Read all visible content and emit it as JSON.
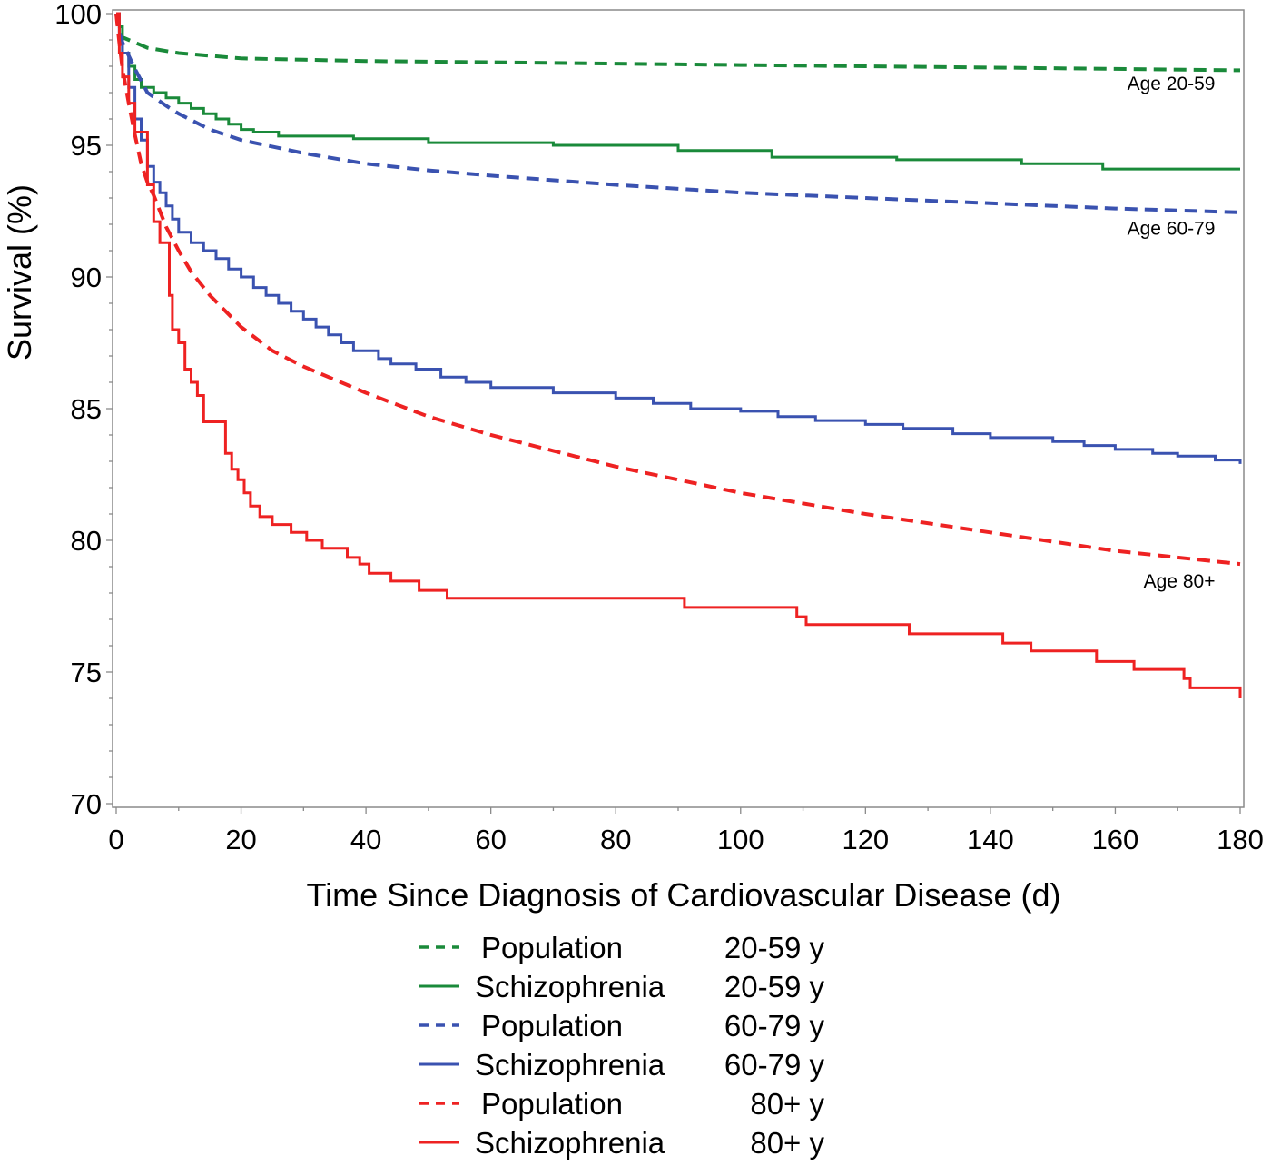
{
  "chart_data": {
    "type": "line",
    "title": "",
    "xlabel": "Time Since Diagnosis of Cardiovascular Disease (d)",
    "ylabel": "Survival (%)",
    "xlim": [
      0,
      180
    ],
    "ylim": [
      70,
      100
    ],
    "xticks": [
      0,
      20,
      40,
      60,
      80,
      100,
      120,
      140,
      160,
      180
    ],
    "xtick_labels": [
      "0",
      "20",
      "40",
      "60",
      "80",
      "100",
      "120",
      "140",
      "160",
      "180"
    ],
    "yticks": [
      70,
      75,
      80,
      85,
      90,
      95,
      100
    ],
    "ytick_labels": [
      "70",
      "75",
      "80",
      "85",
      "90",
      "95",
      "100"
    ],
    "y_minor_tick_step": 1,
    "x_minor_tick_step": 10,
    "grid": false,
    "legend_position": "bottom",
    "annotations": [
      {
        "text": "Age 20-59",
        "x": 176,
        "y": 97.1
      },
      {
        "text": "Age 60-79",
        "x": 176,
        "y": 91.6
      },
      {
        "text": "Age 80+",
        "x": 176,
        "y": 78.2
      }
    ],
    "series": [
      {
        "name": "Population 20-59 y",
        "group": "Population",
        "age": "20-59 y",
        "color": "#1a8a3a",
        "style": "dashed",
        "step": false,
        "x": [
          0,
          0.5,
          1,
          3,
          5,
          10,
          15,
          20,
          30,
          40,
          60,
          80,
          100,
          120,
          140,
          160,
          180
        ],
        "y": [
          100,
          99.5,
          99.1,
          98.9,
          98.7,
          98.5,
          98.4,
          98.3,
          98.25,
          98.2,
          98.15,
          98.1,
          98.05,
          98.0,
          97.95,
          97.9,
          97.85
        ]
      },
      {
        "name": "Schizophrenia 20-59 y",
        "group": "Schizophrenia",
        "age": "20-59 y",
        "color": "#1a8a3a",
        "style": "solid",
        "step": true,
        "x": [
          0,
          0.5,
          1,
          2,
          3,
          4,
          6,
          8,
          10,
          12,
          14,
          16,
          18,
          20,
          22,
          26,
          38,
          50,
          70,
          90,
          105,
          125,
          145,
          158,
          180
        ],
        "y": [
          100,
          99.5,
          98.5,
          98.0,
          97.5,
          97.2,
          97.0,
          96.8,
          96.6,
          96.4,
          96.2,
          96.0,
          95.8,
          95.6,
          95.5,
          95.35,
          95.25,
          95.1,
          95.0,
          94.8,
          94.55,
          94.45,
          94.3,
          94.1,
          94.1
        ]
      },
      {
        "name": "Population 60-79 y",
        "group": "Population",
        "age": "60-79 y",
        "color": "#3a52b0",
        "style": "dashed",
        "step": false,
        "x": [
          0,
          0.5,
          1,
          2,
          3,
          5,
          8,
          10,
          15,
          20,
          30,
          40,
          50,
          60,
          80,
          100,
          120,
          140,
          160,
          180
        ],
        "y": [
          100,
          99.3,
          98.9,
          98.4,
          97.9,
          97.0,
          96.5,
          96.2,
          95.6,
          95.2,
          94.7,
          94.3,
          94.05,
          93.85,
          93.5,
          93.2,
          93.0,
          92.8,
          92.6,
          92.45
        ]
      },
      {
        "name": "Schizophrenia 60-79 y",
        "group": "Schizophrenia",
        "age": "60-79 y",
        "color": "#3a52b0",
        "style": "solid",
        "step": true,
        "x": [
          0,
          0.5,
          1,
          2,
          3,
          4,
          5,
          6,
          7,
          8,
          9,
          10,
          12,
          14,
          16,
          18,
          20,
          22,
          24,
          26,
          28,
          30,
          32,
          34,
          36,
          38,
          42,
          44,
          48,
          52,
          56,
          60,
          70,
          80,
          86,
          92,
          100,
          106,
          112,
          120,
          126,
          134,
          140,
          150,
          155,
          160,
          166,
          170,
          176,
          180
        ],
        "y": [
          100,
          99.0,
          98.5,
          97.2,
          96.0,
          95.2,
          94.2,
          93.6,
          93.2,
          92.7,
          92.2,
          91.7,
          91.3,
          91.0,
          90.7,
          90.3,
          90.0,
          89.6,
          89.3,
          89.0,
          88.7,
          88.4,
          88.1,
          87.8,
          87.5,
          87.2,
          86.9,
          86.7,
          86.5,
          86.2,
          86.0,
          85.8,
          85.6,
          85.4,
          85.2,
          85.0,
          84.9,
          84.7,
          84.55,
          84.4,
          84.25,
          84.05,
          83.9,
          83.75,
          83.6,
          83.45,
          83.3,
          83.2,
          83.05,
          82.9
        ]
      },
      {
        "name": "Population 80+ y",
        "group": "Population",
        "age": "80+ y",
        "color": "#ee2222",
        "style": "dashed",
        "step": false,
        "x": [
          0,
          0.5,
          1,
          2,
          3,
          4,
          5,
          6,
          8,
          10,
          12,
          15,
          20,
          25,
          30,
          40,
          50,
          60,
          70,
          80,
          90,
          100,
          120,
          140,
          160,
          180
        ],
        "y": [
          100,
          98.9,
          97.9,
          96.6,
          95.4,
          94.3,
          93.6,
          93.1,
          91.9,
          91.0,
          90.2,
          89.3,
          88.1,
          87.2,
          86.6,
          85.6,
          84.7,
          84.0,
          83.4,
          82.8,
          82.3,
          81.8,
          81.0,
          80.3,
          79.6,
          79.1
        ]
      },
      {
        "name": "Schizophrenia 80+ y",
        "group": "Schizophrenia",
        "age": "80+ y",
        "color": "#ee2222",
        "style": "solid",
        "step": true,
        "x": [
          0,
          0.5,
          1,
          2,
          3,
          5,
          6,
          7,
          8.5,
          9,
          10,
          11,
          12,
          13,
          14,
          16.8,
          17.5,
          18.5,
          19.5,
          20.5,
          21.5,
          23,
          25,
          28,
          30.5,
          33,
          37,
          39,
          40.5,
          44,
          48.5,
          53,
          86,
          91,
          109,
          110.5,
          127,
          142,
          146.5,
          157,
          163,
          171,
          172,
          180
        ],
        "y": [
          100,
          98.5,
          97.6,
          96.6,
          95.5,
          93.5,
          92.1,
          91.3,
          89.3,
          88.0,
          87.5,
          86.5,
          86.0,
          85.5,
          84.5,
          84.5,
          83.3,
          82.7,
          82.3,
          81.8,
          81.3,
          80.9,
          80.6,
          80.3,
          80.0,
          79.7,
          79.35,
          79.1,
          78.75,
          78.45,
          78.1,
          77.8,
          77.8,
          77.45,
          77.1,
          76.8,
          76.45,
          76.1,
          75.8,
          75.4,
          75.1,
          74.75,
          74.4,
          74.0
        ]
      }
    ]
  },
  "legend": {
    "items": [
      {
        "group": "Population",
        "age": "20-59 y"
      },
      {
        "group": "Schizophrenia",
        "age": "20-59 y"
      },
      {
        "group": "Population",
        "age": "60-79 y"
      },
      {
        "group": "Schizophrenia",
        "age": "60-79 y"
      },
      {
        "group": "Population",
        "age": "80+ y"
      },
      {
        "group": "Schizophrenia",
        "age": "80+ y"
      }
    ]
  }
}
